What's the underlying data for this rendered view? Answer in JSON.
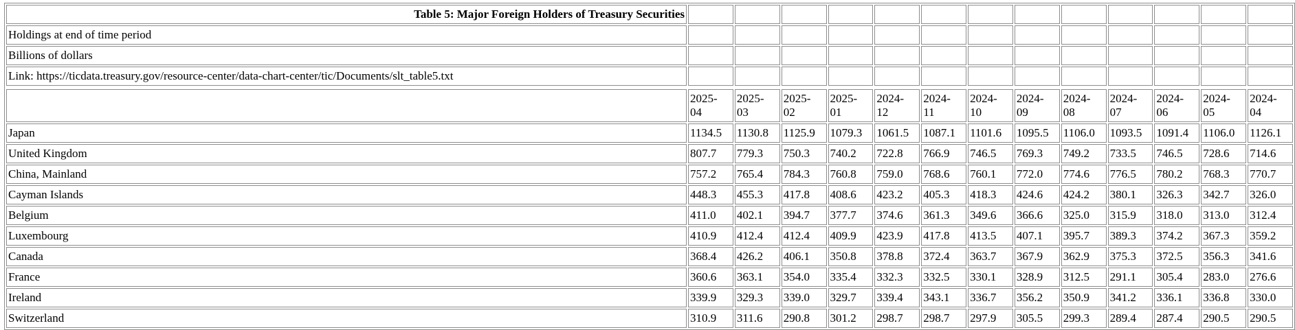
{
  "table": {
    "title": "Table 5: Major Foreign Holders of Treasury Securities",
    "notes": [
      "Holdings at end of time period",
      "Billions of dollars",
      "Link: https://ticdata.treasury.gov/resource-center/data-chart-center/tic/Documents/slt_table5.txt"
    ],
    "periods": [
      {
        "year": "2025-",
        "month": "04"
      },
      {
        "year": "2025-",
        "month": "03"
      },
      {
        "year": "2025-",
        "month": "02"
      },
      {
        "year": "2025-",
        "month": "01"
      },
      {
        "year": "2024-",
        "month": "12"
      },
      {
        "year": "2024-",
        "month": "11"
      },
      {
        "year": "2024-",
        "month": "10"
      },
      {
        "year": "2024-",
        "month": "09"
      },
      {
        "year": "2024-",
        "month": "08"
      },
      {
        "year": "2024-",
        "month": "07"
      },
      {
        "year": "2024-",
        "month": "06"
      },
      {
        "year": "2024-",
        "month": "05"
      },
      {
        "year": "2024-",
        "month": "04"
      }
    ],
    "rows": [
      {
        "country": "Japan",
        "values": [
          "1134.5",
          "1130.8",
          "1125.9",
          "1079.3",
          "1061.5",
          "1087.1",
          "1101.6",
          "1095.5",
          "1106.0",
          "1093.5",
          "1091.4",
          "1106.0",
          "1126.1"
        ]
      },
      {
        "country": "United Kingdom",
        "values": [
          "807.7",
          "779.3",
          "750.3",
          "740.2",
          "722.8",
          "766.9",
          "746.5",
          "769.3",
          "749.2",
          "733.5",
          "746.5",
          "728.6",
          "714.6"
        ]
      },
      {
        "country": "China, Mainland",
        "values": [
          "757.2",
          "765.4",
          "784.3",
          "760.8",
          "759.0",
          "768.6",
          "760.1",
          "772.0",
          "774.6",
          "776.5",
          "780.2",
          "768.3",
          "770.7"
        ]
      },
      {
        "country": "Cayman Islands",
        "values": [
          "448.3",
          "455.3",
          "417.8",
          "408.6",
          "423.2",
          "405.3",
          "418.3",
          "424.6",
          "424.2",
          "380.1",
          "326.3",
          "342.7",
          "326.0"
        ]
      },
      {
        "country": "Belgium",
        "values": [
          "411.0",
          "402.1",
          "394.7",
          "377.7",
          "374.6",
          "361.3",
          "349.6",
          "366.6",
          "325.0",
          "315.9",
          "318.0",
          "313.0",
          "312.4"
        ]
      },
      {
        "country": "Luxembourg",
        "values": [
          "410.9",
          "412.4",
          "412.4",
          "409.9",
          "423.9",
          "417.8",
          "413.5",
          "407.1",
          "395.7",
          "389.3",
          "374.2",
          "367.3",
          "359.2"
        ]
      },
      {
        "country": "Canada",
        "values": [
          "368.4",
          "426.2",
          "406.1",
          "350.8",
          "378.8",
          "372.4",
          "363.7",
          "367.9",
          "362.9",
          "375.3",
          "372.5",
          "356.3",
          "341.6"
        ]
      },
      {
        "country": "France",
        "values": [
          "360.6",
          "363.1",
          "354.0",
          "335.4",
          "332.3",
          "332.5",
          "330.1",
          "328.9",
          "312.5",
          "291.1",
          "305.4",
          "283.0",
          "276.6"
        ]
      },
      {
        "country": "Ireland",
        "values": [
          "339.9",
          "329.3",
          "339.0",
          "329.7",
          "339.4",
          "343.1",
          "336.7",
          "356.2",
          "350.9",
          "341.2",
          "336.1",
          "336.8",
          "330.0"
        ]
      },
      {
        "country": "Switzerland",
        "values": [
          "310.9",
          "311.6",
          "290.8",
          "301.2",
          "298.7",
          "298.7",
          "297.9",
          "305.5",
          "299.3",
          "289.4",
          "287.4",
          "290.5",
          "290.5"
        ]
      }
    ]
  }
}
